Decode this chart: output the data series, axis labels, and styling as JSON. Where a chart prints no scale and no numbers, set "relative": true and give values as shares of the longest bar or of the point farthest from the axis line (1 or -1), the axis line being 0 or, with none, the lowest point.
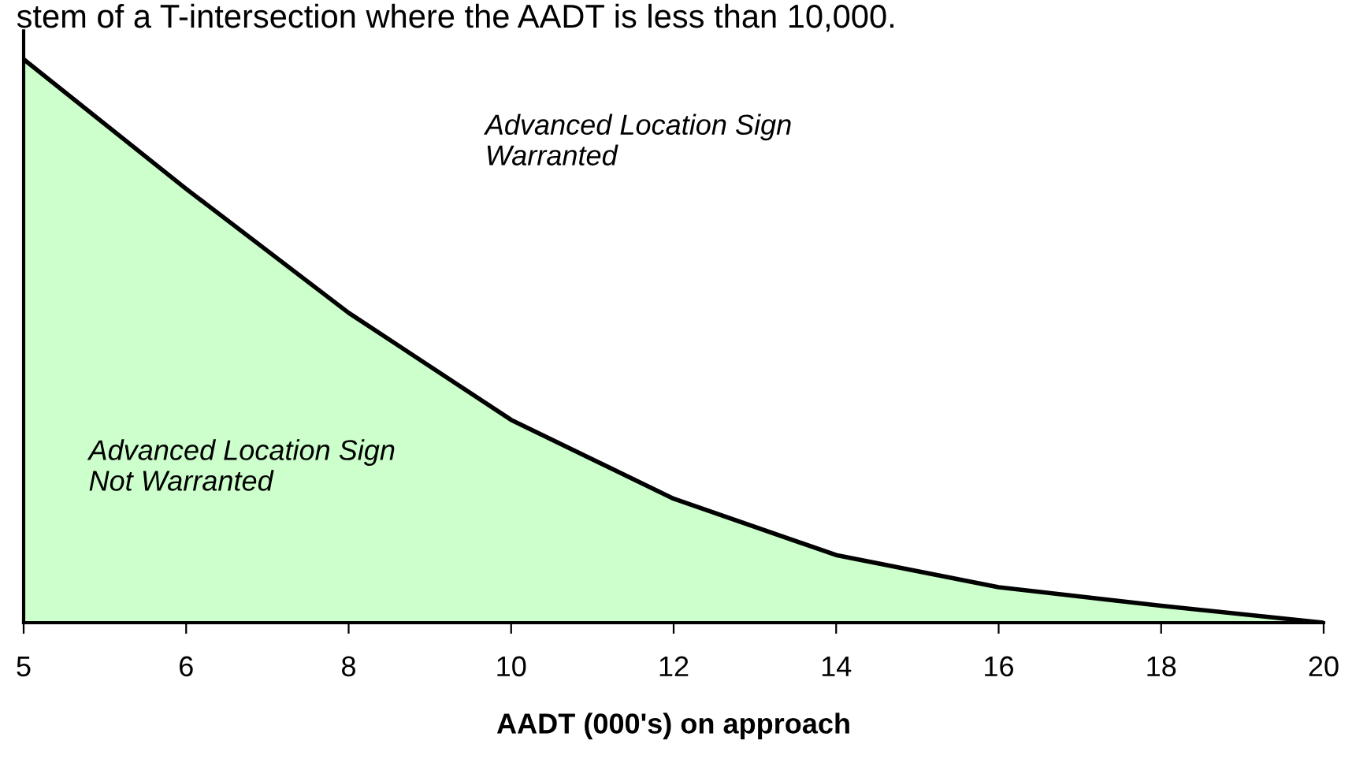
{
  "chart_data": {
    "type": "area",
    "relative": true,
    "xlabel": "AADT (000's) on approach",
    "categories": [
      "5",
      "6",
      "8",
      "10",
      "12",
      "14",
      "16",
      "18",
      "20"
    ],
    "series": [
      {
        "color": "#ccffcc",
        "values": [
          1.0,
          0.77,
          0.55,
          0.36,
          0.22,
          0.12,
          0.063,
          0.03,
          0
        ]
      }
    ],
    "tick_labels": "x",
    "grid": false,
    "legend": false,
    "annotations": [
      "stem of a T-intersection where the AADT is less than 10,000.",
      "Advanced Location Sign\nWarranted",
      "Advanced Location Sign\nNot Warranted"
    ]
  }
}
